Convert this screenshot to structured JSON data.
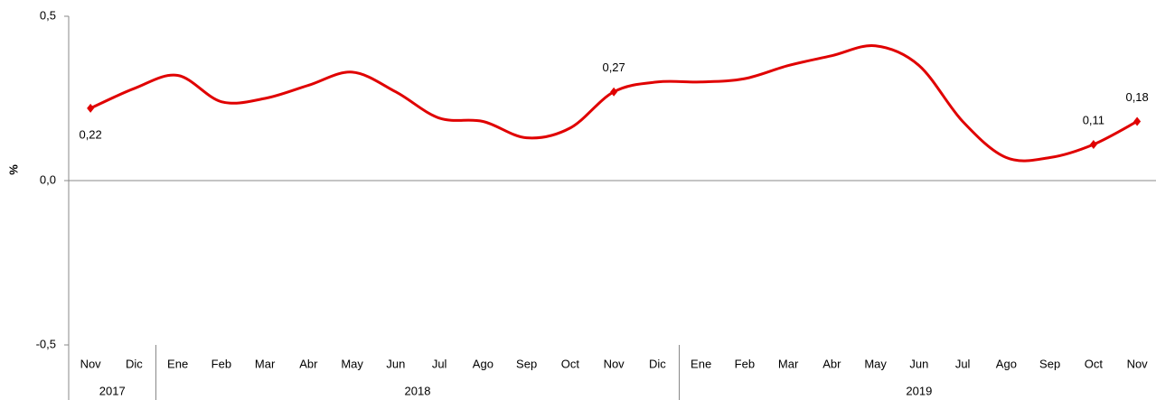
{
  "chart_data": {
    "type": "line",
    "ylabel": "%",
    "groups": [
      {
        "label": "2017",
        "categories": [
          "Nov",
          "Dic"
        ]
      },
      {
        "label": "2018",
        "categories": [
          "Ene",
          "Feb",
          "Mar",
          "Abr",
          "May",
          "Jun",
          "Jul",
          "Ago",
          "Sep",
          "Oct",
          "Nov",
          "Dic"
        ]
      },
      {
        "label": "2019",
        "categories": [
          "Ene",
          "Feb",
          "Mar",
          "Abr",
          "May",
          "Jun",
          "Jul",
          "Ago",
          "Sep",
          "Oct",
          "Nov"
        ]
      }
    ],
    "series": [
      {
        "color": "#e00000",
        "values": [
          0.22,
          0.28,
          0.32,
          0.24,
          0.25,
          0.29,
          0.33,
          0.27,
          0.19,
          0.18,
          0.13,
          0.16,
          0.27,
          0.3,
          0.3,
          0.31,
          0.35,
          0.38,
          0.41,
          0.35,
          0.18,
          0.07,
          0.07,
          0.11,
          0.18
        ],
        "value_labels": [
          "0,22",
          null,
          null,
          null,
          null,
          null,
          null,
          null,
          null,
          null,
          null,
          null,
          "0,27",
          null,
          null,
          null,
          null,
          null,
          null,
          null,
          null,
          null,
          null,
          "0,11",
          "0,18"
        ]
      }
    ],
    "ylim": [
      -0.5,
      0.5
    ],
    "yticks": [
      {
        "value": -0.5,
        "label": "-0,5"
      },
      {
        "value": 0,
        "label": "0,0"
      },
      {
        "value": 0.5,
        "label": "0,5"
      }
    ]
  }
}
